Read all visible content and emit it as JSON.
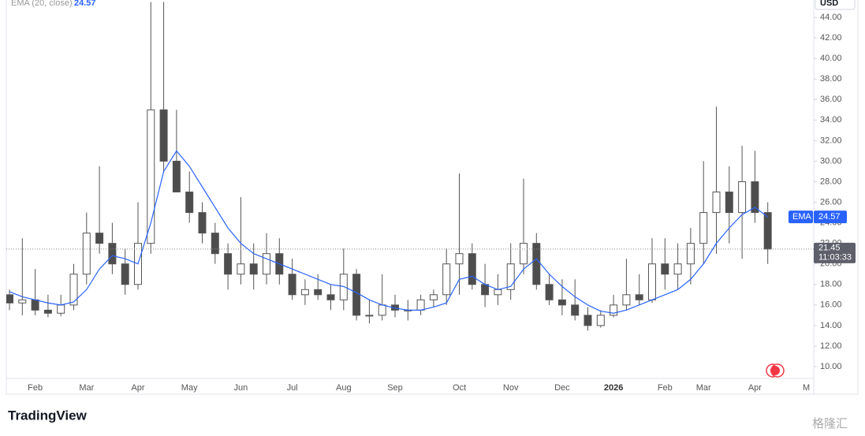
{
  "chart_data": {
    "type": "candlestick",
    "currency": "USD",
    "categories": [
      null,
      null,
      "Feb",
      null,
      null,
      null,
      "Mar",
      null,
      null,
      null,
      "Apr",
      null,
      null,
      null,
      "May",
      null,
      null,
      null,
      "Jun",
      null,
      null,
      null,
      "Jul",
      null,
      null,
      null,
      "Aug",
      null,
      null,
      null,
      "Sep",
      null,
      null,
      null,
      null,
      "Oct",
      null,
      null,
      null,
      "Nov",
      null,
      null,
      null,
      "Dec",
      null,
      null,
      null,
      "2026",
      null,
      null,
      null,
      "Feb",
      null,
      null,
      "Mar",
      null,
      null,
      null,
      "Apr",
      null,
      null,
      null,
      "M"
    ],
    "open": [
      17,
      16.2,
      16.5,
      15.5,
      15.2,
      16,
      19,
      23,
      22,
      20,
      18,
      22,
      35,
      30,
      27,
      25,
      23,
      21,
      19,
      20,
      19,
      21,
      19,
      17,
      17.5,
      17,
      16.5,
      19,
      15,
      15,
      16,
      15.5,
      15.5,
      16.5,
      17,
      20,
      21,
      18,
      17,
      17.5,
      20,
      22,
      18,
      16.5,
      16,
      15,
      14,
      15,
      16,
      17,
      16.5,
      20,
      19,
      20,
      22,
      25,
      27,
      25,
      28,
      25,
      null,
      null,
      null
    ],
    "high": [
      17.5,
      22.5,
      19.5,
      17,
      17,
      20,
      25,
      29.5,
      24,
      21.5,
      26,
      45.5,
      45.5,
      35,
      29,
      26,
      24,
      22,
      26.5,
      22,
      23,
      22.5,
      20.5,
      18.5,
      19,
      18,
      21.5,
      19.5,
      16.5,
      19,
      17,
      16.5,
      17,
      17.5,
      21.5,
      28.8,
      22,
      20,
      19,
      22,
      28.3,
      23,
      19,
      18.5,
      18.5,
      15.8,
      15.5,
      17,
      20.5,
      19,
      22.5,
      22.5,
      22,
      23.5,
      30,
      35.3,
      29.5,
      31.5,
      31,
      26,
      null,
      null,
      null
    ],
    "low": [
      15.5,
      15,
      15,
      14.8,
      14.9,
      15.5,
      18,
      21,
      19,
      17,
      17.5,
      21,
      29,
      27,
      24,
      22,
      20,
      17.5,
      18,
      17.5,
      18,
      18,
      16.5,
      16,
      16.5,
      15.5,
      15.5,
      14.5,
      14.2,
      14.5,
      14.8,
      14.5,
      15,
      15.8,
      16,
      17,
      17.5,
      15.8,
      16,
      16.5,
      19,
      17.5,
      16,
      15,
      14.5,
      13.5,
      13.8,
      14.8,
      15.5,
      16,
      16.2,
      17.5,
      17.5,
      18,
      20,
      21,
      22,
      20.5,
      24,
      20,
      null,
      null,
      null
    ],
    "close": [
      16.2,
      16.5,
      15.5,
      15.2,
      16,
      19,
      23,
      22,
      20,
      18,
      22,
      35,
      30,
      27,
      25,
      23,
      21,
      19,
      20,
      19,
      21,
      19,
      17,
      17.5,
      17,
      16.5,
      19,
      15,
      15,
      16,
      15.5,
      15.5,
      16.5,
      17,
      20,
      21,
      18,
      17,
      17.5,
      20,
      22,
      18,
      16.5,
      16,
      15,
      14,
      15,
      16,
      17,
      16.5,
      20,
      19,
      20,
      22,
      25,
      27,
      25,
      28,
      25,
      21.45,
      null,
      null,
      null
    ],
    "up_color": "#ffffff",
    "down_color": "#4d4d4d",
    "wick_color": "#555555",
    "ema": {
      "legend": "EMA (20, close)",
      "name": "EMA",
      "color": "#2962ff",
      "values": [
        17.3,
        16.8,
        16.5,
        16.2,
        16,
        16.3,
        17.5,
        19.5,
        20.8,
        20.5,
        20,
        24,
        29,
        31,
        29.5,
        27.5,
        25.5,
        23.5,
        22,
        21,
        20.5,
        20,
        19.5,
        19,
        18.5,
        18,
        17.8,
        17.2,
        16.5,
        16,
        15.7,
        15.5,
        15.5,
        15.8,
        16.2,
        18.5,
        18.8,
        18,
        17.5,
        17.8,
        19.5,
        20.5,
        19,
        17.8,
        16.8,
        16,
        15.4,
        15.2,
        15.5,
        16,
        16.5,
        17,
        17.5,
        18.5,
        20,
        22,
        23.5,
        24.8,
        25.5,
        24.57,
        null,
        null,
        null
      ]
    },
    "countdown": "11:03:33",
    "ylim": [
      8.85,
      45.69
    ],
    "yticks": [
      {
        "value": 10,
        "label": "10.00"
      },
      {
        "value": 12,
        "label": "12.00"
      },
      {
        "value": 14,
        "label": "14.00"
      },
      {
        "value": 16,
        "label": "16.00"
      },
      {
        "value": 18,
        "label": "18.00"
      },
      {
        "value": 20,
        "label": "20.00"
      },
      {
        "value": 22,
        "label": "22.00"
      },
      {
        "value": 24,
        "label": "24.00"
      },
      {
        "value": 26,
        "label": "26.00"
      },
      {
        "value": 28,
        "label": "28.00"
      },
      {
        "value": 30,
        "label": "30.00"
      },
      {
        "value": 32,
        "label": "32.00"
      },
      {
        "value": 34,
        "label": "34.00"
      },
      {
        "value": 36,
        "label": "36.00"
      },
      {
        "value": 38,
        "label": "38.00"
      },
      {
        "value": 40,
        "label": "40.00"
      },
      {
        "value": 42,
        "label": "42.00"
      },
      {
        "value": 44,
        "label": "44.00"
      }
    ],
    "grid": false
  },
  "footer": {
    "logo": "TradingView",
    "watermark": "格隆汇"
  }
}
